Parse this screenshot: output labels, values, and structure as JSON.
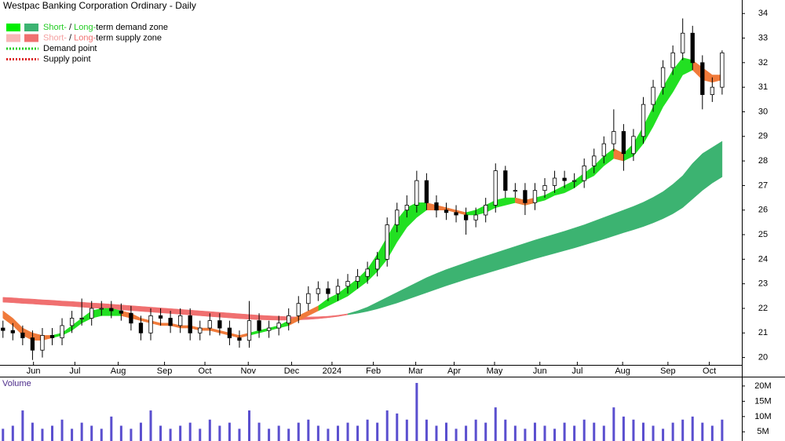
{
  "chart_data": {
    "type": "candlestick",
    "title": "Westpac Banking Corporation Ordinary - Daily",
    "x": [
      0,
      1,
      2,
      3,
      4,
      5,
      6,
      7,
      8,
      9,
      10,
      11,
      12,
      13,
      14,
      15,
      16,
      17,
      18,
      19,
      20,
      21,
      22,
      23,
      24,
      25,
      26,
      27,
      28,
      29,
      30,
      31,
      32,
      33,
      34,
      35,
      36,
      37,
      38,
      39,
      40,
      41,
      42,
      43,
      44,
      45,
      46,
      47,
      48,
      49,
      50,
      51,
      52,
      53,
      54,
      55,
      56,
      57,
      58,
      59,
      60,
      61,
      62,
      63,
      64,
      65,
      66,
      67,
      68,
      69,
      70,
      71,
      72,
      73
    ],
    "open": [
      21.2,
      21.1,
      21.0,
      20.8,
      20.3,
      20.9,
      20.8,
      21.3,
      21.6,
      21.6,
      22.0,
      22.0,
      21.9,
      21.8,
      21.4,
      21.0,
      21.7,
      21.6,
      21.3,
      21.7,
      21.0,
      21.2,
      21.5,
      21.2,
      20.8,
      20.7,
      21.5,
      21.1,
      21.2,
      21.4,
      21.7,
      22.2,
      22.6,
      22.8,
      22.6,
      22.9,
      23.1,
      23.3,
      23.6,
      24.0,
      25.4,
      26.0,
      26.2,
      27.2,
      26.3,
      26.0,
      25.9,
      25.8,
      25.6,
      25.8,
      26.2,
      27.6,
      26.8,
      26.8,
      26.3,
      26.8,
      27.0,
      27.3,
      27.2,
      27.2,
      27.8,
      28.2,
      28.7,
      29.2,
      28.3,
      29.0,
      30.3,
      31.0,
      31.8,
      32.4,
      33.2,
      32.0,
      30.7,
      31.0
    ],
    "high": [
      21.5,
      21.4,
      21.3,
      21.1,
      21.2,
      21.2,
      21.6,
      21.9,
      22.4,
      22.3,
      22.3,
      22.3,
      22.2,
      22.1,
      21.7,
      22.0,
      22.0,
      21.9,
      22.0,
      22.0,
      21.5,
      21.8,
      21.8,
      21.5,
      21.1,
      22.3,
      21.8,
      21.5,
      21.7,
      22.0,
      22.5,
      22.9,
      23.1,
      23.1,
      23.2,
      23.4,
      23.6,
      23.9,
      24.3,
      25.7,
      26.3,
      26.6,
      27.6,
      27.5,
      26.6,
      26.3,
      26.2,
      26.1,
      26.1,
      26.5,
      27.9,
      27.8,
      27.1,
      27.1,
      27.1,
      27.3,
      27.6,
      27.6,
      27.5,
      28.1,
      28.5,
      29.0,
      30.1,
      29.5,
      29.3,
      30.6,
      31.3,
      32.1,
      32.7,
      33.8,
      33.5,
      32.3,
      31.4,
      32.5
    ],
    "low": [
      20.8,
      20.7,
      20.5,
      19.9,
      20.0,
      20.5,
      20.5,
      21.0,
      21.3,
      21.3,
      21.7,
      21.6,
      21.5,
      21.1,
      20.7,
      20.7,
      21.3,
      21.0,
      21.0,
      20.7,
      20.7,
      20.9,
      20.9,
      20.5,
      20.4,
      20.4,
      20.8,
      20.8,
      20.9,
      21.1,
      21.4,
      21.9,
      22.3,
      22.3,
      22.3,
      22.6,
      22.8,
      23.0,
      23.3,
      23.7,
      25.1,
      25.7,
      25.9,
      26.0,
      25.7,
      25.6,
      25.5,
      25.0,
      25.3,
      25.5,
      25.9,
      26.5,
      26.5,
      25.8,
      26.0,
      26.5,
      26.7,
      26.9,
      26.9,
      26.9,
      27.5,
      27.9,
      28.4,
      27.6,
      28.0,
      28.7,
      30.0,
      30.7,
      31.5,
      32.1,
      31.7,
      30.1,
      30.4,
      30.7
    ],
    "close": [
      21.1,
      21.0,
      20.8,
      20.3,
      20.9,
      20.8,
      21.3,
      21.6,
      21.6,
      22.0,
      22.0,
      21.9,
      21.8,
      21.4,
      21.0,
      21.7,
      21.6,
      21.3,
      21.7,
      21.0,
      21.2,
      21.5,
      21.2,
      20.8,
      20.7,
      21.5,
      21.1,
      21.2,
      21.4,
      21.7,
      22.2,
      22.6,
      22.8,
      22.6,
      22.9,
      23.1,
      23.3,
      23.6,
      24.0,
      25.4,
      26.0,
      26.2,
      27.2,
      26.3,
      26.0,
      25.9,
      25.8,
      25.6,
      25.8,
      26.2,
      27.6,
      26.8,
      26.8,
      26.3,
      26.8,
      27.0,
      27.3,
      27.2,
      27.2,
      27.8,
      28.2,
      28.7,
      29.2,
      28.3,
      29.0,
      30.3,
      31.0,
      31.8,
      32.4,
      33.2,
      32.0,
      30.7,
      31.0,
      32.4
    ],
    "up_color": "#ffffff",
    "down_color": "#000000",
    "zones": [
      {
        "color": "#f07070",
        "upper": [
          22.45,
          22.43,
          22.4,
          22.38,
          22.35,
          22.33,
          22.3,
          22.28,
          22.25,
          22.22,
          22.2,
          22.17,
          22.14,
          22.11,
          22.08,
          22.05,
          22.02,
          21.99,
          21.96,
          21.93,
          21.9,
          21.87,
          21.84,
          21.81,
          21.78,
          21.75,
          21.72,
          21.7,
          21.68,
          21.66,
          21.65,
          21.65,
          21.66,
          21.68,
          21.72,
          21.78,
          null,
          null,
          null,
          null,
          null,
          null,
          null,
          null,
          null,
          null,
          null,
          null,
          null,
          null,
          null,
          null,
          null,
          null,
          null,
          null,
          null,
          null,
          null,
          null,
          null,
          null,
          null,
          null,
          null,
          null,
          null,
          null,
          null,
          null,
          null,
          null,
          null,
          null
        ],
        "lower": [
          22.25,
          22.23,
          22.2,
          22.18,
          22.15,
          22.13,
          22.1,
          22.08,
          22.05,
          22.02,
          22.0,
          21.97,
          21.94,
          21.91,
          21.88,
          21.85,
          21.82,
          21.79,
          21.76,
          21.73,
          21.7,
          21.67,
          21.64,
          21.61,
          21.58,
          21.56,
          21.54,
          21.53,
          21.52,
          21.52,
          21.53,
          21.55,
          21.58,
          21.62,
          21.67,
          21.74,
          null,
          null,
          null,
          null,
          null,
          null,
          null,
          null,
          null,
          null,
          null,
          null,
          null,
          null,
          null,
          null,
          null,
          null,
          null,
          null,
          null,
          null,
          null,
          null,
          null,
          null,
          null,
          null,
          null,
          null,
          null,
          null,
          null,
          null,
          null,
          null,
          null,
          null
        ]
      },
      {
        "color": "#3cb371",
        "upper": [
          null,
          null,
          null,
          null,
          null,
          null,
          null,
          null,
          null,
          null,
          null,
          null,
          null,
          null,
          null,
          null,
          null,
          null,
          null,
          null,
          null,
          null,
          null,
          null,
          null,
          null,
          null,
          null,
          null,
          null,
          null,
          null,
          null,
          null,
          null,
          21.78,
          21.9,
          22.05,
          22.25,
          22.45,
          22.65,
          22.85,
          23.05,
          23.25,
          23.42,
          23.58,
          23.72,
          23.86,
          24.0,
          24.13,
          24.26,
          24.39,
          24.52,
          24.65,
          24.78,
          24.9,
          25.02,
          25.14,
          25.27,
          25.4,
          25.55,
          25.7,
          25.85,
          26.0,
          26.15,
          26.32,
          26.52,
          26.75,
          27.05,
          27.4,
          27.9,
          28.3,
          28.55,
          28.8
        ],
        "lower": [
          null,
          null,
          null,
          null,
          null,
          null,
          null,
          null,
          null,
          null,
          null,
          null,
          null,
          null,
          null,
          null,
          null,
          null,
          null,
          null,
          null,
          null,
          null,
          null,
          null,
          null,
          null,
          null,
          null,
          null,
          null,
          null,
          null,
          null,
          null,
          21.74,
          21.8,
          21.88,
          21.98,
          22.1,
          22.22,
          22.36,
          22.5,
          22.64,
          22.78,
          22.92,
          23.05,
          23.18,
          23.3,
          23.42,
          23.54,
          23.66,
          23.78,
          23.9,
          24.02,
          24.13,
          24.24,
          24.35,
          24.46,
          24.58,
          24.7,
          24.82,
          24.95,
          25.08,
          25.2,
          25.33,
          25.48,
          25.65,
          25.85,
          26.1,
          26.45,
          26.8,
          27.1,
          27.35
        ]
      },
      {
        "color": "#22e022",
        "upper": [
          null,
          null,
          null,
          null,
          null,
          20.9,
          21.0,
          21.3,
          21.6,
          21.9,
          22.0,
          22.0,
          21.9,
          null,
          null,
          null,
          null,
          null,
          null,
          null,
          null,
          null,
          null,
          null,
          null,
          21.0,
          21.1,
          21.2,
          21.3,
          21.5,
          null,
          null,
          22.1,
          22.4,
          22.6,
          22.9,
          23.2,
          23.6,
          24.2,
          24.9,
          25.6,
          26.1,
          26.3,
          26.3,
          null,
          null,
          null,
          25.9,
          26.0,
          26.2,
          26.4,
          26.5,
          26.5,
          26.4,
          26.5,
          26.6,
          26.8,
          27.0,
          27.2,
          27.5,
          27.8,
          28.2,
          28.5,
          28.3,
          28.7,
          29.4,
          30.2,
          31.0,
          31.7,
          32.2,
          32.1,
          null,
          null,
          null
        ],
        "lower": [
          null,
          null,
          null,
          null,
          null,
          20.8,
          20.9,
          21.1,
          21.4,
          21.6,
          21.7,
          21.7,
          21.7,
          null,
          null,
          null,
          null,
          null,
          null,
          null,
          null,
          null,
          null,
          null,
          null,
          20.9,
          21.0,
          21.1,
          21.2,
          21.3,
          null,
          null,
          21.9,
          22.1,
          22.3,
          22.5,
          22.8,
          23.1,
          23.5,
          24.0,
          24.7,
          25.3,
          25.7,
          26.0,
          null,
          null,
          null,
          25.8,
          25.8,
          25.9,
          26.1,
          26.2,
          26.3,
          26.2,
          26.3,
          26.4,
          26.6,
          26.7,
          26.9,
          27.2,
          27.4,
          27.8,
          28.1,
          28.0,
          28.2,
          28.7,
          29.4,
          30.2,
          30.8,
          31.5,
          31.7,
          null,
          null,
          null
        ]
      },
      {
        "color": "#f07a3a",
        "upper": [
          21.9,
          21.6,
          21.2,
          21.0,
          20.9,
          20.9,
          null,
          null,
          null,
          null,
          null,
          null,
          21.9,
          21.8,
          21.6,
          21.5,
          21.4,
          21.4,
          21.3,
          21.3,
          21.2,
          21.2,
          21.1,
          21.0,
          20.9,
          21.0,
          null,
          null,
          null,
          21.5,
          21.7,
          21.9,
          22.1,
          null,
          null,
          null,
          null,
          null,
          null,
          null,
          null,
          null,
          null,
          26.3,
          26.2,
          26.1,
          26.0,
          25.9,
          null,
          null,
          null,
          null,
          26.5,
          26.4,
          26.5,
          null,
          null,
          null,
          null,
          null,
          null,
          null,
          28.5,
          28.3,
          null,
          null,
          null,
          null,
          null,
          null,
          32.1,
          31.8,
          31.5,
          31.5
        ],
        "lower": [
          21.6,
          21.3,
          20.9,
          20.7,
          20.7,
          20.8,
          null,
          null,
          null,
          null,
          null,
          null,
          21.7,
          21.6,
          21.5,
          21.4,
          21.3,
          21.3,
          21.2,
          21.2,
          21.1,
          21.1,
          21.0,
          20.9,
          20.8,
          20.9,
          null,
          null,
          null,
          21.3,
          21.5,
          21.7,
          21.9,
          null,
          null,
          null,
          null,
          null,
          null,
          null,
          null,
          null,
          null,
          26.0,
          26.0,
          26.0,
          25.9,
          25.8,
          null,
          null,
          null,
          null,
          26.3,
          26.2,
          26.3,
          null,
          null,
          null,
          null,
          null,
          null,
          null,
          28.1,
          28.0,
          null,
          null,
          null,
          null,
          null,
          null,
          31.7,
          31.3,
          31.2,
          31.3
        ]
      }
    ],
    "xlim": [
      -0.3,
      75
    ],
    "xticks": [
      {
        "value": 3.1,
        "label": "Jun"
      },
      {
        "value": 7.3,
        "label": "Jul"
      },
      {
        "value": 11.7,
        "label": "Aug"
      },
      {
        "value": 16.4,
        "label": "Sep"
      },
      {
        "value": 20.5,
        "label": "Oct"
      },
      {
        "value": 24.9,
        "label": "Nov"
      },
      {
        "value": 29.3,
        "label": "Dec"
      },
      {
        "value": 33.4,
        "label": "2024"
      },
      {
        "value": 37.6,
        "label": "Feb"
      },
      {
        "value": 41.9,
        "label": "Mar"
      },
      {
        "value": 45.8,
        "label": "Apr"
      },
      {
        "value": 49.9,
        "label": "May"
      },
      {
        "value": 54.5,
        "label": "Jun"
      },
      {
        "value": 58.3,
        "label": "Jul"
      },
      {
        "value": 62.9,
        "label": "Aug"
      },
      {
        "value": 67.5,
        "label": "Sep"
      },
      {
        "value": 71.7,
        "label": "Oct"
      }
    ],
    "ylim": [
      19.7,
      34.55
    ],
    "yticks": [
      20,
      21,
      22,
      23,
      24,
      25,
      26,
      27,
      28,
      29,
      30,
      31,
      32,
      33,
      34
    ],
    "volume": {
      "label": "Volume",
      "color": "#5a4fcf",
      "values": [
        6,
        7,
        12,
        8,
        6,
        7,
        9,
        6,
        8,
        7,
        6,
        10,
        7,
        6,
        8,
        12,
        7,
        6,
        7,
        8,
        6,
        9,
        7,
        8,
        6,
        12,
        8,
        6,
        7,
        6,
        8,
        9,
        7,
        6,
        7,
        8,
        7,
        9,
        8,
        12,
        11,
        9,
        21,
        9,
        7,
        8,
        6,
        7,
        9,
        8,
        13,
        9,
        7,
        6,
        8,
        7,
        6,
        8,
        7,
        9,
        8,
        7,
        13,
        10,
        9,
        8,
        7,
        6,
        8,
        9,
        10,
        8,
        7,
        9
      ],
      "ylim": [
        2,
        22.8
      ],
      "yticks": [
        {
          "value": 5,
          "label": "5M"
        },
        {
          "value": 10,
          "label": "10M"
        },
        {
          "value": 15,
          "label": "15M"
        },
        {
          "value": 20,
          "label": "20M"
        }
      ]
    },
    "legend": [
      {
        "style": "box",
        "swatches": [
          "#00ee00",
          "#3cb371"
        ],
        "parts": [
          "Short-",
          " / ",
          "Long-",
          "term demand zone"
        ],
        "part_colors": [
          "#22cc22",
          "#000000",
          "#22cc22",
          "#000000"
        ]
      },
      {
        "style": "box",
        "swatches": [
          "#f7b6b6",
          "#f07070"
        ],
        "parts": [
          "Short-",
          " / ",
          "Long-",
          "term supply zone"
        ],
        "part_colors": [
          "#f4a0a0",
          "#000000",
          "#f07070",
          "#000000"
        ]
      },
      {
        "style": "dotted",
        "swatches": [
          "#22cc22"
        ],
        "parts": [
          "Demand point"
        ],
        "part_colors": [
          "#000000"
        ]
      },
      {
        "style": "dotted",
        "swatches": [
          "#dd2222"
        ],
        "parts": [
          "Supply point"
        ],
        "part_colors": [
          "#000000"
        ]
      }
    ]
  }
}
